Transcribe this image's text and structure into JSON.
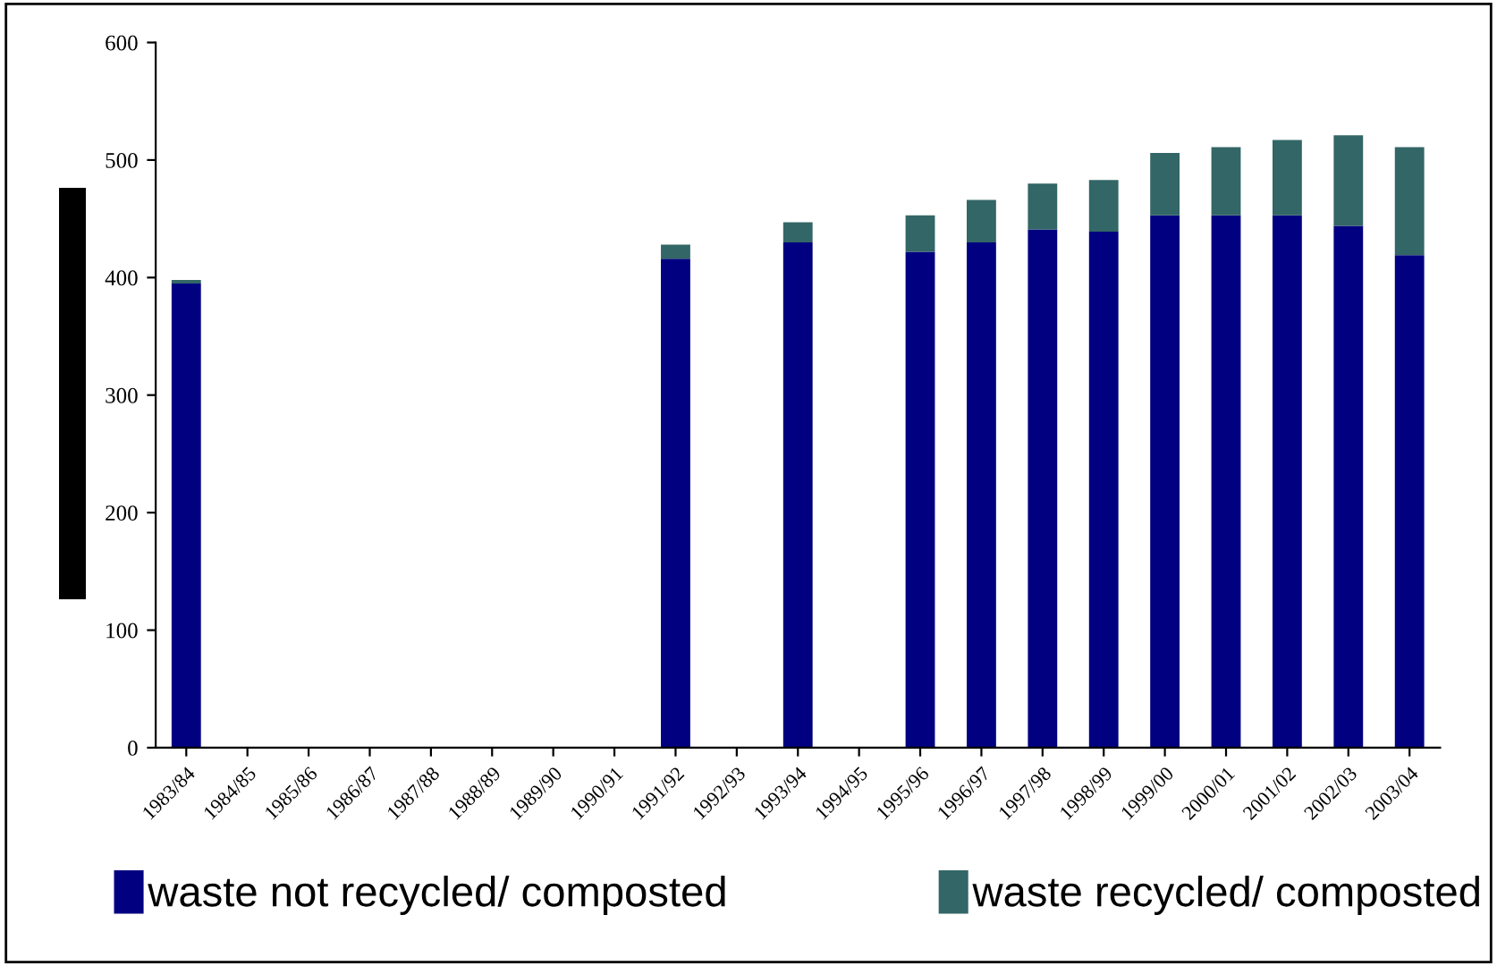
{
  "chart_data": {
    "type": "bar",
    "stacked": true,
    "categories": [
      "1983/84",
      "1984/85",
      "1985/86",
      "1986/87",
      "1987/88",
      "1988/89",
      "1989/90",
      "1990/91",
      "1991/92",
      "1992/93",
      "1993/94",
      "1994/95",
      "1995/96",
      "1996/97",
      "1997/98",
      "1998/99",
      "1999/00",
      "2000/01",
      "2001/02",
      "2002/03",
      "2003/04"
    ],
    "series": [
      {
        "name": "waste not recycled/ composted",
        "color": "#000080",
        "values": [
          395,
          null,
          null,
          null,
          null,
          null,
          null,
          null,
          416,
          null,
          430,
          null,
          422,
          430,
          441,
          439,
          453,
          453,
          453,
          444,
          419
        ]
      },
      {
        "name": "waste recycled/ composted",
        "color": "#336666",
        "values": [
          3,
          null,
          null,
          null,
          null,
          null,
          null,
          null,
          12,
          null,
          17,
          null,
          31,
          36,
          39,
          44,
          53,
          58,
          64,
          77,
          92
        ]
      }
    ],
    "ylim": [
      0,
      600
    ],
    "yticks": [
      0,
      100,
      200,
      300,
      400,
      500,
      600
    ],
    "grid": false,
    "legend": "bottom"
  }
}
